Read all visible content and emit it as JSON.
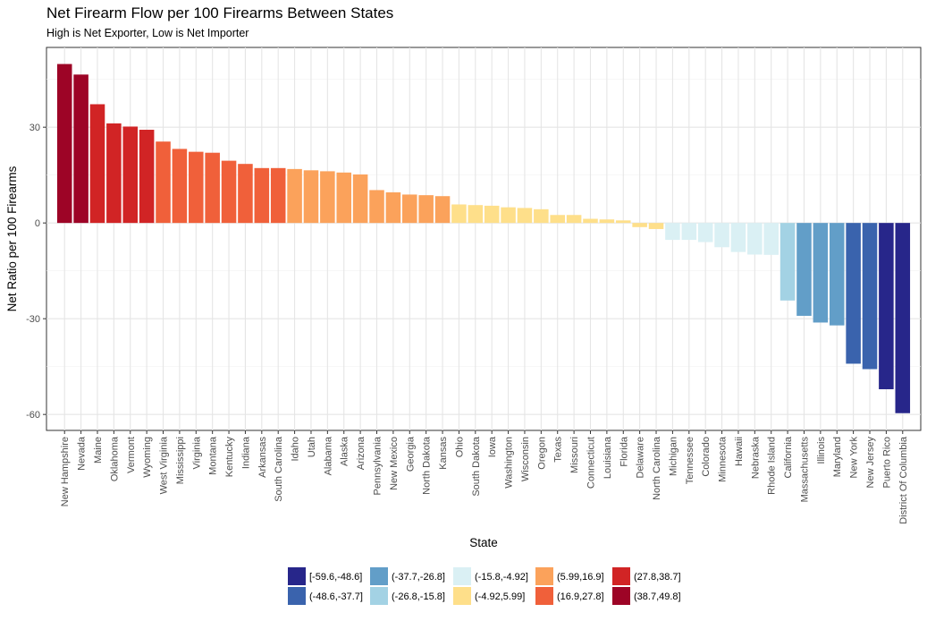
{
  "chart_data": {
    "type": "bar",
    "title": "Net Firearm Flow per 100 Firearms Between States",
    "subtitle": "High is Net Exporter, Low is Net Importer",
    "xlabel": "State",
    "ylabel": "Net Ratio per 100 Firearms",
    "ylim": [
      -65,
      55
    ],
    "yticks": [
      -60,
      -30,
      0,
      30
    ],
    "grid": true,
    "legend_position": "bottom",
    "categories": [
      "New Hampshire",
      "Nevada",
      "Maine",
      "Oklahoma",
      "Vermont",
      "Wyoming",
      "West Virginia",
      "Mississippi",
      "Virginia",
      "Montana",
      "Kentucky",
      "Indiana",
      "Arkansas",
      "South Carolina",
      "Idaho",
      "Utah",
      "Alabama",
      "Alaska",
      "Arizona",
      "Pennsylvania",
      "New Mexico",
      "Georgia",
      "North Dakota",
      "Kansas",
      "Ohio",
      "South Dakota",
      "Iowa",
      "Washington",
      "Wisconsin",
      "Oregon",
      "Texas",
      "Missouri",
      "Connecticut",
      "Louisiana",
      "Florida",
      "Delaware",
      "North Carolina",
      "Michigan",
      "Tennessee",
      "Colorado",
      "Minnesota",
      "Hawaii",
      "Nebraska",
      "Rhode Island",
      "California",
      "Massachusetts",
      "Illinois",
      "Maryland",
      "New York",
      "New Jersey",
      "Puerto Rico",
      "District Of Columbia"
    ],
    "values": [
      49.8,
      46.5,
      37.2,
      31.2,
      30.2,
      29.2,
      25.5,
      23.2,
      22.3,
      22.0,
      19.5,
      18.5,
      17.2,
      17.2,
      16.9,
      16.5,
      16.2,
      15.8,
      15.2,
      10.3,
      9.6,
      8.9,
      8.7,
      8.4,
      5.8,
      5.6,
      5.4,
      4.9,
      4.7,
      4.3,
      2.5,
      2.5,
      1.3,
      1.1,
      0.8,
      -1.3,
      -1.9,
      -5.3,
      -5.3,
      -6.0,
      -7.6,
      -9.1,
      -9.9,
      -10.0,
      -24.3,
      -29.1,
      -31.2,
      -32.1,
      -44.1,
      -45.8,
      -52.1,
      -59.6
    ],
    "legend": [
      {
        "label": "[-59.6,-48.6]",
        "color": "#27268a"
      },
      {
        "label": "(-48.6,-37.7]",
        "color": "#3a63ad"
      },
      {
        "label": "(-37.7,-26.8]",
        "color": "#629ec8"
      },
      {
        "label": "(-26.8,-15.8]",
        "color": "#a3d2e4"
      },
      {
        "label": "(-15.8,-4.92]",
        "color": "#daf0f4"
      },
      {
        "label": "(-4.92,5.99]",
        "color": "#fedf8a"
      },
      {
        "label": "(5.99,16.9]",
        "color": "#fba25b"
      },
      {
        "label": "(16.9,27.8]",
        "color": "#f0603a"
      },
      {
        "label": "(27.8,38.7]",
        "color": "#d12425"
      },
      {
        "label": "(38.7,49.8]",
        "color": "#9d0426"
      }
    ]
  }
}
